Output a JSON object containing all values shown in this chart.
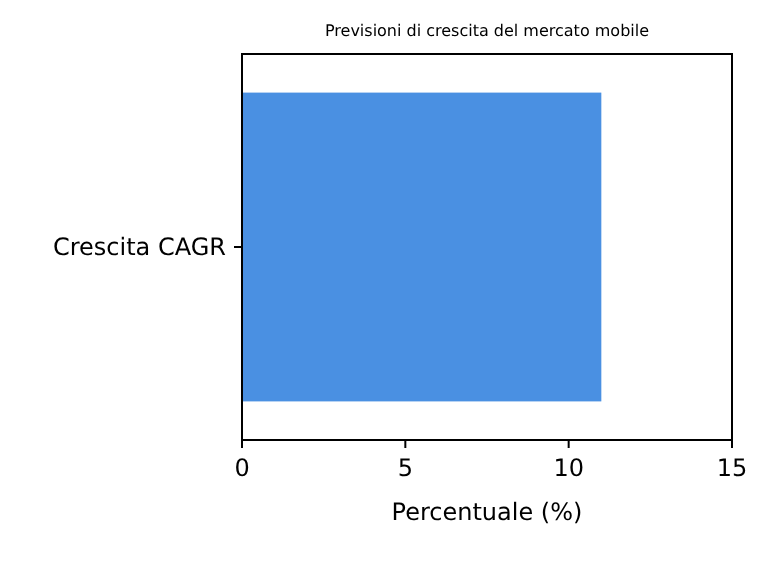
{
  "chart_data": {
    "type": "bar",
    "orientation": "horizontal",
    "title": "Previsioni di crescita del mercato mobile",
    "xlabel": "Percentuale (%)",
    "categories": [
      "Crescita CAGR"
    ],
    "values": [
      11
    ],
    "color": "#4a90e2",
    "xlim": [
      0,
      15
    ],
    "xticks": [
      0,
      5,
      10,
      15
    ]
  }
}
